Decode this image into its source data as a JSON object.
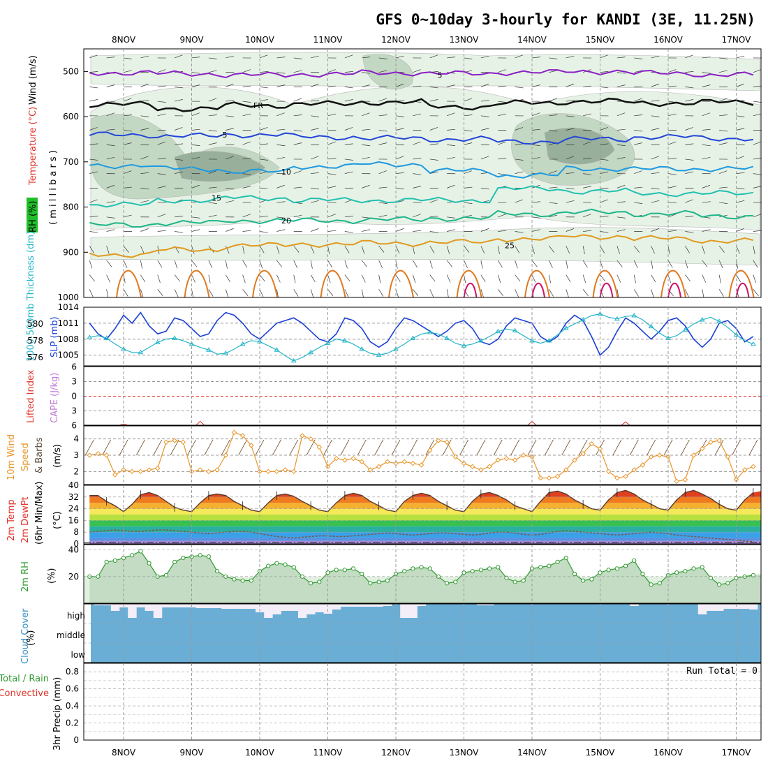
{
  "title": "GFS 0~10day 3-hourly for KANDI (3E, 11.25N)",
  "colors": {
    "rh_light": "#e6f2e6",
    "rh_mid": "#c3d8c3",
    "rh_dark": "#98b09b",
    "slp": "#1a3fd6",
    "thickness": "#22b5c8",
    "wind10m": "#e8952a",
    "rh2m": "#2f9a2f",
    "cloud": "#6aaed6",
    "cloud_gap": "#f3eef7",
    "lifted": "#e0342a"
  },
  "panels": {
    "upper": {
      "labels": {
        "rh": "RH (%)",
        "temperature": "Temperature (°C)",
        "wind": "Wind (m/s)",
        "pressure": "( m i l l i b a r s )"
      },
      "freezing_label": "FR"
    },
    "slp": {
      "thickness_label": "1000-500mb Thickness (dm)",
      "slp_label": "SLP (mb)"
    },
    "cape": {
      "lifted_label": "Lifted Index",
      "cape_label": "CAPE (J/kg)"
    },
    "wind": {
      "label_a": "10m Wind",
      "label_b": "Speed",
      "label_c": "& Barbs",
      "unit": "(m/s)"
    },
    "temp": {
      "label_a": "2m Temp",
      "label_b": "2m DewPt",
      "label_c": "(6hr Min/Max)",
      "unit": "(°C)"
    },
    "rh": {
      "label": "2m RH",
      "unit": "(%)"
    },
    "cloud": {
      "label": "Cloud Cover",
      "unit": "(%)",
      "levels": [
        "high",
        "middle",
        "low"
      ]
    },
    "precip": {
      "label_a": "Total / Rain",
      "label_b": "Convective",
      "label_c": "3hr Precip (mm)",
      "run_total": "Run Total = 0"
    }
  },
  "chart_data": [
    {
      "type": "heatmap",
      "panel": "upper-air",
      "x_dates": [
        "8NOV",
        "9NOV",
        "10NOV",
        "11NOV",
        "12NOV",
        "13NOV",
        "14NOV",
        "15NOV",
        "16NOV",
        "17NOV"
      ],
      "ylim": [
        1000,
        450
      ],
      "y_ticks": [
        500,
        600,
        700,
        800,
        900,
        1000
      ],
      "isotherms": [
        {
          "label": "5",
          "color": "#8a1fc4",
          "p": [
            503,
            505,
            508,
            506,
            503,
            505,
            502,
            500,
            504,
            508
          ]
        },
        {
          "label": "FR",
          "color": "#111111",
          "p": [
            573,
            582,
            575,
            572,
            568,
            578,
            570,
            566,
            570,
            568
          ]
        },
        {
          "label": "-5",
          "color": "#2246d8",
          "p": [
            640,
            643,
            640,
            645,
            648,
            650,
            655,
            650,
            645,
            648
          ]
        },
        {
          "label": "10",
          "color": "#1e9ae0",
          "p": [
            708,
            715,
            722,
            710,
            705,
            720,
            730,
            715,
            716,
            715
          ]
        },
        {
          "label": "15",
          "color": "#22c0b0",
          "p": [
            795,
            785,
            780,
            785,
            785,
            785,
            760,
            765,
            770,
            770
          ]
        },
        {
          "label": "20",
          "color": "#1eb58a",
          "p": [
            840,
            835,
            830,
            830,
            828,
            825,
            815,
            812,
            815,
            820
          ]
        },
        {
          "label": "25",
          "color": "#e09a20",
          "p": [
            905,
            895,
            885,
            882,
            880,
            878,
            870,
            865,
            870,
            875
          ]
        }
      ],
      "rh_scale": [
        "30",
        "50",
        "70"
      ]
    },
    {
      "type": "line",
      "panel": "slp-thickness",
      "x": [
        0,
        3,
        6,
        9,
        12,
        15,
        18,
        21,
        24,
        27,
        30,
        33,
        36,
        39,
        42,
        45,
        48,
        51,
        54,
        57,
        60,
        63,
        66,
        69,
        72,
        75,
        78,
        81,
        84,
        87,
        90,
        93,
        96,
        99,
        102,
        105,
        108,
        111,
        114,
        117,
        120,
        123,
        126,
        129,
        132,
        135,
        138,
        141,
        144,
        147,
        150,
        153,
        156,
        159,
        162,
        165,
        168,
        171,
        174,
        177,
        180,
        183,
        186,
        189,
        192,
        195,
        198,
        201,
        204,
        207,
        210,
        213,
        216,
        219,
        222,
        225,
        228,
        231,
        234,
        237
      ],
      "ylim_slp": [
        1003,
        1014
      ],
      "ylim_thick": [
        575,
        582
      ],
      "y_ticks_slp": [
        1005,
        1008,
        1011,
        1014
      ],
      "y_ticks_thick": [
        576,
        578,
        580
      ],
      "series": [
        {
          "name": "SLP (mb)",
          "values": [
            1011.0,
            1009.0,
            1008.0,
            1010.0,
            1012.5,
            1011.0,
            1013.0,
            1010.5,
            1009.0,
            1009.5,
            1012.0,
            1011.5,
            1010.0,
            1008.5,
            1009.0,
            1011.5,
            1013.0,
            1012.5,
            1011.0,
            1009.0,
            1008.0,
            1009.5,
            1011.0,
            1011.5,
            1012.0,
            1011.0,
            1009.5,
            1008.0,
            1007.5,
            1009.0,
            1012.0,
            1011.5,
            1010.0,
            1007.5,
            1006.5,
            1007.5,
            1010.0,
            1012.0,
            1011.5,
            1010.5,
            1009.5,
            1008.5,
            1009.5,
            1011.0,
            1011.5,
            1010.0,
            1007.5,
            1007.0,
            1008.0,
            1010.5,
            1012.0,
            1011.5,
            1011.0,
            1008.5,
            1007.5,
            1008.5,
            1011.0,
            1012.5,
            1011.5,
            1008.5,
            1005.0,
            1006.5,
            1009.5,
            1012.0,
            1011.0,
            1009.5,
            1008.0,
            1009.5,
            1011.5,
            1012.0,
            1010.5,
            1008.0,
            1006.5,
            1008.0,
            1011.0,
            1011.5,
            1010.0,
            1007.5,
            1008.5,
            1011.0
          ]
        },
        {
          "name": "1000-500mb Thickness (dm)",
          "values": [
            578.4,
            578.6,
            578.3,
            577.6,
            577.0,
            576.6,
            576.6,
            577.2,
            577.8,
            578.2,
            578.3,
            578.0,
            577.6,
            577.2,
            576.9,
            576.4,
            576.5,
            577.0,
            577.6,
            578.0,
            577.9,
            577.4,
            576.9,
            576.2,
            575.6,
            576.0,
            576.6,
            577.2,
            577.7,
            578.2,
            578.0,
            577.6,
            577.0,
            576.5,
            576.3,
            576.5,
            577.0,
            577.6,
            578.3,
            578.8,
            579.0,
            578.8,
            578.3,
            577.7,
            577.4,
            577.6,
            578.0,
            578.5,
            579.1,
            579.4,
            579.2,
            578.6,
            578.0,
            577.7,
            578.0,
            578.7,
            579.5,
            580.0,
            580.5,
            581.0,
            581.2,
            580.8,
            580.6,
            580.9,
            581.0,
            580.5,
            579.7,
            578.9,
            578.3,
            578.6,
            579.3,
            580.0,
            580.5,
            580.8,
            580.3,
            579.6,
            578.7,
            578.0,
            577.6,
            577.7
          ]
        }
      ]
    },
    {
      "type": "line",
      "panel": "cape-lifted",
      "y_ticks": [
        "-6",
        "-3",
        "0",
        "3",
        "6"
      ],
      "series": [
        {
          "name": "Lifted Index",
          "values": [
            {
              "x": 12,
              "y": 6.0
            },
            {
              "x": 39,
              "y": 5.5
            },
            {
              "x": 156,
              "y": 5.5
            },
            {
              "x": 189,
              "y": 5.6
            }
          ]
        }
      ]
    },
    {
      "type": "line",
      "panel": "wind10m",
      "ylim": [
        1.2,
        4.8
      ],
      "y_ticks": [
        2,
        3,
        4
      ],
      "series": [
        {
          "name": "10m Wind Speed",
          "values": [
            3.0,
            3.1,
            3.0,
            1.8,
            2.1,
            2.0,
            2.0,
            2.1,
            2.2,
            3.8,
            3.9,
            3.8,
            2.0,
            2.1,
            2.0,
            2.1,
            3.0,
            4.4,
            4.2,
            3.6,
            2.0,
            2.0,
            2.0,
            2.1,
            2.0,
            4.2,
            4.0,
            3.5,
            2.3,
            2.8,
            2.7,
            2.8,
            2.6,
            2.1,
            2.3,
            2.6,
            2.5,
            2.6,
            2.5,
            2.4,
            3.3,
            3.9,
            3.8,
            2.9,
            2.5,
            2.3,
            2.1,
            2.3,
            2.7,
            2.8,
            2.7,
            3.0,
            2.9,
            1.6,
            1.6,
            1.7,
            2.1,
            2.7,
            3.1,
            3.7,
            3.4,
            2.0,
            1.6,
            1.7,
            2.1,
            2.4,
            2.9,
            3.0,
            2.9,
            1.4,
            1.5,
            3.0,
            3.4,
            3.8,
            3.9,
            2.9,
            1.5,
            2.1,
            2.3,
            2.2
          ]
        }
      ]
    },
    {
      "type": "area",
      "panel": "temperature",
      "ylim": [
        0,
        40
      ],
      "y_ticks": [
        0,
        8,
        16,
        24,
        32,
        40
      ],
      "series": [
        {
          "name": "2m Temp",
          "values": [
            33.0,
            33.0,
            29.0,
            26.0,
            22.0,
            27.0,
            33.5,
            35.0,
            33.0,
            29.0,
            25.0,
            23.0,
            22.0,
            28.0,
            33.0,
            34.0,
            33.0,
            29.0,
            26.0,
            23.0,
            22.0,
            28.0,
            33.0,
            34.0,
            32.5,
            29.0,
            26.0,
            23.0,
            22.0,
            28.0,
            33.0,
            34.5,
            33.0,
            29.0,
            26.0,
            23.0,
            22.0,
            29.0,
            33.0,
            34.5,
            33.0,
            29.0,
            26.0,
            23.0,
            22.0,
            29.0,
            34.0,
            35.0,
            33.0,
            30.0,
            26.0,
            24.0,
            22.0,
            29.0,
            35.0,
            36.0,
            34.0,
            30.0,
            27.0,
            24.0,
            23.0,
            30.0,
            35.0,
            36.5,
            34.0,
            30.0,
            27.0,
            24.0,
            23.0,
            30.0,
            35.0,
            36.5,
            34.0,
            31.0,
            27.0,
            24.0,
            23.0,
            30.0,
            35.0,
            36.0
          ]
        },
        {
          "name": "2m DewPt",
          "values": [
            8.0,
            8.5,
            9.0,
            9.5,
            9.0,
            8.5,
            8.5,
            9.0,
            9.5,
            9.5,
            9.0,
            8.5,
            8.0,
            7.5,
            7.0,
            7.5,
            8.0,
            8.5,
            8.5,
            8.0,
            7.0,
            6.0,
            5.0,
            4.5,
            4.0,
            4.5,
            5.0,
            5.5,
            5.5,
            5.0,
            5.0,
            5.5,
            6.0,
            6.5,
            7.0,
            7.5,
            7.0,
            6.5,
            6.0,
            6.5,
            7.0,
            7.5,
            7.5,
            7.0,
            6.5,
            6.0,
            6.5,
            7.5,
            8.0,
            8.0,
            7.5,
            6.5,
            6.0,
            6.5,
            7.5,
            8.5,
            9.0,
            8.5,
            8.0,
            7.5,
            7.0,
            6.5,
            6.0,
            6.5,
            7.0,
            7.5,
            8.0,
            7.5,
            7.0,
            6.0,
            5.5,
            5.0,
            4.5,
            4.0,
            3.5,
            3.0,
            2.5,
            2.0,
            1.5,
            1.0
          ]
        }
      ]
    },
    {
      "type": "area",
      "panel": "rh2m",
      "ylim": [
        0,
        40
      ],
      "y_ticks": [
        20,
        40
      ],
      "series": [
        {
          "name": "2m RH",
          "values": [
            20,
            20,
            31,
            32,
            34,
            36,
            39,
            30,
            20,
            21,
            31,
            34,
            35,
            36,
            35,
            24,
            20,
            18,
            17,
            17,
            24,
            28,
            30,
            29,
            27,
            20,
            15,
            16,
            23,
            25,
            25,
            26,
            22,
            15,
            16,
            17,
            22,
            24,
            26,
            27,
            26,
            20,
            15,
            16,
            23,
            24,
            25,
            26,
            27,
            19,
            16,
            17,
            26,
            27,
            28,
            31,
            34,
            22,
            17,
            18,
            23,
            25,
            26,
            28,
            32,
            22,
            14,
            15,
            21,
            23,
            24,
            26,
            27,
            19,
            14,
            15,
            19,
            20,
            21,
            22
          ]
        }
      ]
    },
    {
      "type": "bar",
      "panel": "cloud-cover",
      "levels": [
        "high",
        "middle",
        "low"
      ],
      "series": [
        {
          "name": "high",
          "values": [
            18,
            18,
            18,
            10,
            15,
            0,
            15,
            10,
            0,
            15,
            15,
            15,
            15,
            14,
            14,
            14,
            13,
            13,
            13,
            13,
            8,
            0,
            5,
            10,
            10,
            0,
            5,
            8,
            6,
            12,
            16,
            16,
            16,
            16,
            16,
            17,
            20,
            0,
            0,
            17,
            20,
            20,
            20,
            20,
            20,
            20,
            18,
            18,
            20,
            20,
            20,
            20,
            20,
            20,
            20,
            20,
            20,
            20,
            20,
            20,
            20,
            20,
            20,
            20,
            17,
            20,
            20,
            20,
            20,
            20,
            20,
            20,
            5,
            10,
            10,
            13,
            13,
            13,
            12,
            12
          ]
        }
      ]
    },
    {
      "type": "bar",
      "panel": "precip",
      "ylim": [
        0,
        0.9
      ],
      "y_ticks": [
        "0",
        "0.2",
        "0.4",
        "0.6",
        "0.8"
      ],
      "series": [
        {
          "name": "Total / Rain",
          "values": [
            0,
            0,
            0,
            0,
            0,
            0,
            0,
            0,
            0,
            0
          ]
        }
      ]
    }
  ]
}
